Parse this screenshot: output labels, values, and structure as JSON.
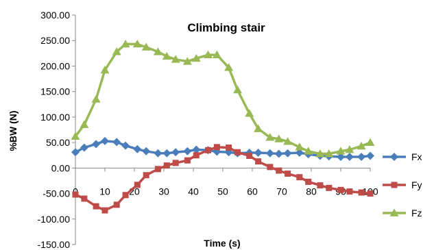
{
  "chart_data": {
    "type": "line",
    "title": "Climbing stair",
    "xlabel": "Time (s)",
    "ylabel": "%BW (N)",
    "xlim": [
      0,
      100
    ],
    "ylim": [
      -150,
      300
    ],
    "x_ticks": [
      "0",
      "10",
      "20",
      "30",
      "40",
      "50",
      "60",
      "70",
      "80",
      "90",
      "100"
    ],
    "y_ticks": [
      "300.00",
      "250.00",
      "200.00",
      "150.00",
      "100.00",
      "50.00",
      "0.00",
      "-50.00",
      "-100.00",
      "-150.00"
    ],
    "legend_position": "right",
    "grid": false,
    "x": [
      0,
      3,
      7,
      10,
      14,
      17,
      21,
      24,
      28,
      31,
      34,
      38,
      41,
      45,
      48,
      52,
      55,
      59,
      62,
      66,
      69,
      72,
      76,
      79,
      83,
      86,
      90,
      93,
      97,
      100
    ],
    "series": [
      {
        "name": "Fx",
        "color": "#4a7ebb",
        "marker": "diamond",
        "values": [
          31,
          40,
          47,
          53,
          51,
          44,
          37,
          33,
          29,
          29,
          31,
          33,
          36,
          35,
          32,
          31,
          29,
          30,
          30,
          29,
          28,
          29,
          30,
          27,
          24,
          23,
          22,
          22,
          22,
          24
        ]
      },
      {
        "name": "Fy",
        "color": "#be4b48",
        "marker": "square",
        "values": [
          -52,
          -60,
          -75,
          -83,
          -72,
          -53,
          -33,
          -14,
          -2,
          5,
          10,
          15,
          25,
          35,
          41,
          40,
          31,
          24,
          13,
          2,
          -5,
          -11,
          -18,
          -27,
          -34,
          -39,
          -43,
          -46,
          -48,
          -50
        ]
      },
      {
        "name": "Fz",
        "color": "#98b954",
        "marker": "triangle",
        "values": [
          62,
          85,
          135,
          192,
          228,
          243,
          243,
          237,
          228,
          219,
          213,
          209,
          215,
          222,
          222,
          197,
          153,
          107,
          77,
          60,
          57,
          52,
          41,
          33,
          28,
          28,
          33,
          36,
          43,
          50
        ]
      }
    ]
  }
}
